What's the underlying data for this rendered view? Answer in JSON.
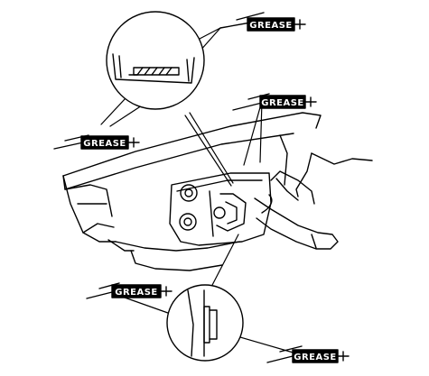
{
  "callouts": [
    {
      "id": "grease-top-right",
      "label": "GREASE"
    },
    {
      "id": "grease-right",
      "label": "GREASE"
    },
    {
      "id": "grease-left",
      "label": "GREASE"
    },
    {
      "id": "grease-lower-left",
      "label": "GREASE"
    },
    {
      "id": "grease-bottom-right",
      "label": "GREASE"
    }
  ],
  "colors": {
    "ink": "#000000",
    "paper": "#ffffff"
  }
}
